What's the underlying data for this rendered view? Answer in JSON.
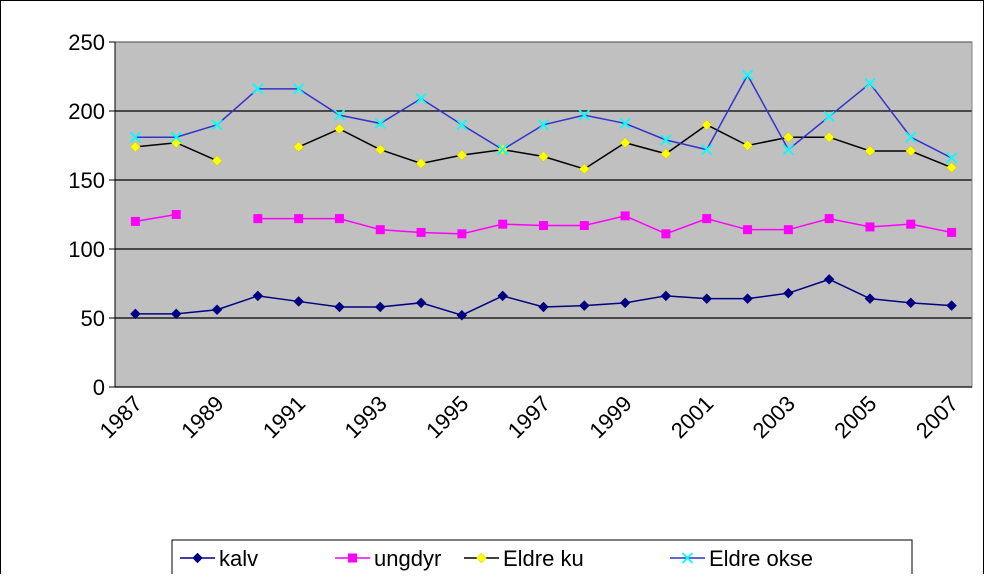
{
  "chart_data": {
    "type": "line",
    "categories": [
      "1987",
      null,
      "1989",
      null,
      "1991",
      null,
      "1993",
      null,
      "1995",
      null,
      "1997",
      null,
      "1999",
      null,
      "2001",
      null,
      "2003",
      null,
      "2005",
      null,
      "2007"
    ],
    "ylim": [
      0,
      250
    ],
    "yticks": [
      0,
      50,
      100,
      150,
      200,
      250
    ],
    "grid": true,
    "legend": "bottom",
    "series": [
      {
        "name": "kalv",
        "color": "#000080",
        "marker_color": "#000080",
        "marker": "diamond",
        "values": [
          53,
          53,
          56,
          66,
          62,
          58,
          58,
          61,
          52,
          66,
          58,
          59,
          61,
          66,
          64,
          64,
          68,
          78,
          64,
          61,
          59
        ]
      },
      {
        "name": "ungdyr",
        "color": "#ff00ff",
        "marker_color": "#ff00ff",
        "marker": "square",
        "values": [
          120,
          125,
          null,
          122,
          122,
          122,
          114,
          112,
          111,
          118,
          117,
          117,
          124,
          111,
          122,
          114,
          114,
          122,
          116,
          118,
          112
        ]
      },
      {
        "name": "Eldre ku",
        "color": "#000000",
        "marker_color": "#ffff00",
        "marker": "diamond",
        "values": [
          174,
          177,
          164,
          null,
          174,
          187,
          172,
          162,
          168,
          172,
          167,
          158,
          177,
          169,
          190,
          175,
          181,
          181,
          171,
          171,
          159
        ]
      },
      {
        "name": "Eldre okse",
        "color": "#3333cc",
        "marker_color": "#00ffff",
        "marker": "x",
        "values": [
          181,
          181,
          190,
          216,
          216,
          197,
          191,
          209,
          190,
          172,
          190,
          197,
          191,
          179,
          172,
          226,
          172,
          196,
          220,
          181,
          166
        ]
      }
    ]
  }
}
